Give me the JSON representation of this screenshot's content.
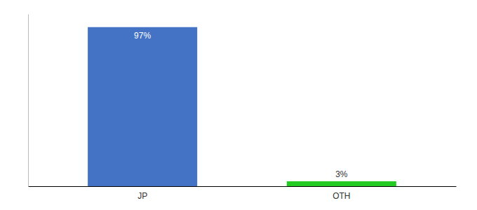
{
  "chart_data": {
    "type": "bar",
    "categories": [
      "JP",
      "OTH"
    ],
    "values": [
      97,
      3
    ],
    "value_labels": [
      "97%",
      "3%"
    ],
    "colors": [
      "#4472c4",
      "#22cc22"
    ],
    "ylim": [
      0,
      105
    ],
    "data_labels": true,
    "tick_labels": "x"
  }
}
